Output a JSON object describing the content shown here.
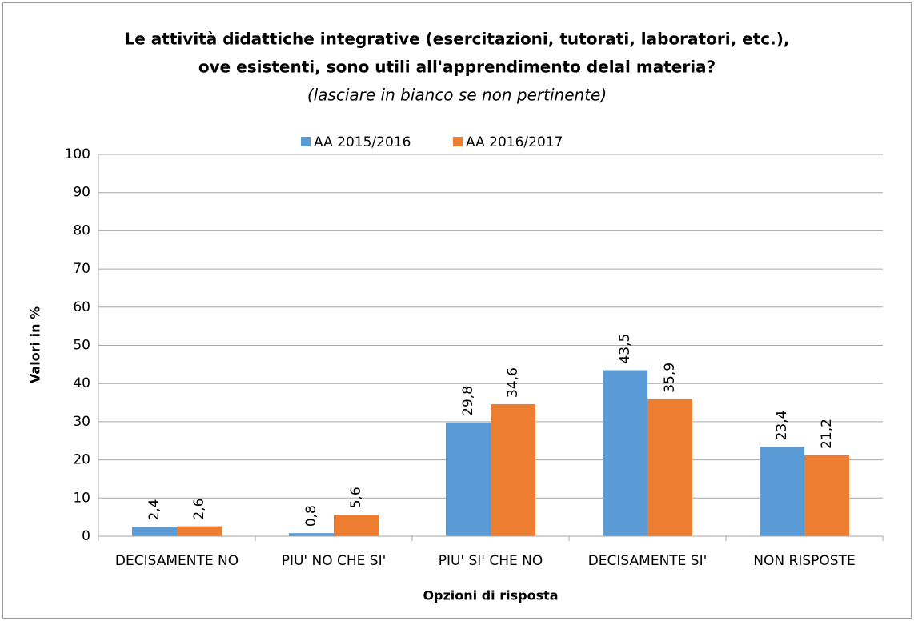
{
  "chart_data": {
    "type": "bar",
    "title": [
      "Le attività didattiche integrative (esercitazioni, tutorati, laboratori, etc.),",
      "ove esistenti, sono utili all'apprendimento delal materia?"
    ],
    "subtitle": "(lasciare in bianco se non pertinente)",
    "x_label": "Opzioni di risposta",
    "y_label": "Valori in %",
    "categories": [
      "DECISAMENTE NO",
      "PIU' NO CHE SI'",
      "PIU' SI' CHE NO",
      "DECISAMENTE SI'",
      "NON RISPOSTE"
    ],
    "series": [
      {
        "name": "AA 2015/2016",
        "color": "#5b9bd5",
        "values": [
          2.4,
          0.8,
          29.8,
          43.5,
          23.4
        ],
        "value_labels": [
          "2,4",
          "0,8",
          "29,8",
          "43,5",
          "23,4"
        ]
      },
      {
        "name": "AA 2016/2017",
        "color": "#ed7d31",
        "values": [
          2.6,
          5.6,
          34.6,
          35.9,
          21.2
        ],
        "value_labels": [
          "2,6",
          "5,6",
          "34,6",
          "35,9",
          "21,2"
        ]
      }
    ],
    "ylim": [
      0,
      100
    ],
    "yticks": [
      0,
      10,
      20,
      30,
      40,
      50,
      60,
      70,
      80,
      90,
      100
    ],
    "grid": true,
    "legend": "top"
  }
}
